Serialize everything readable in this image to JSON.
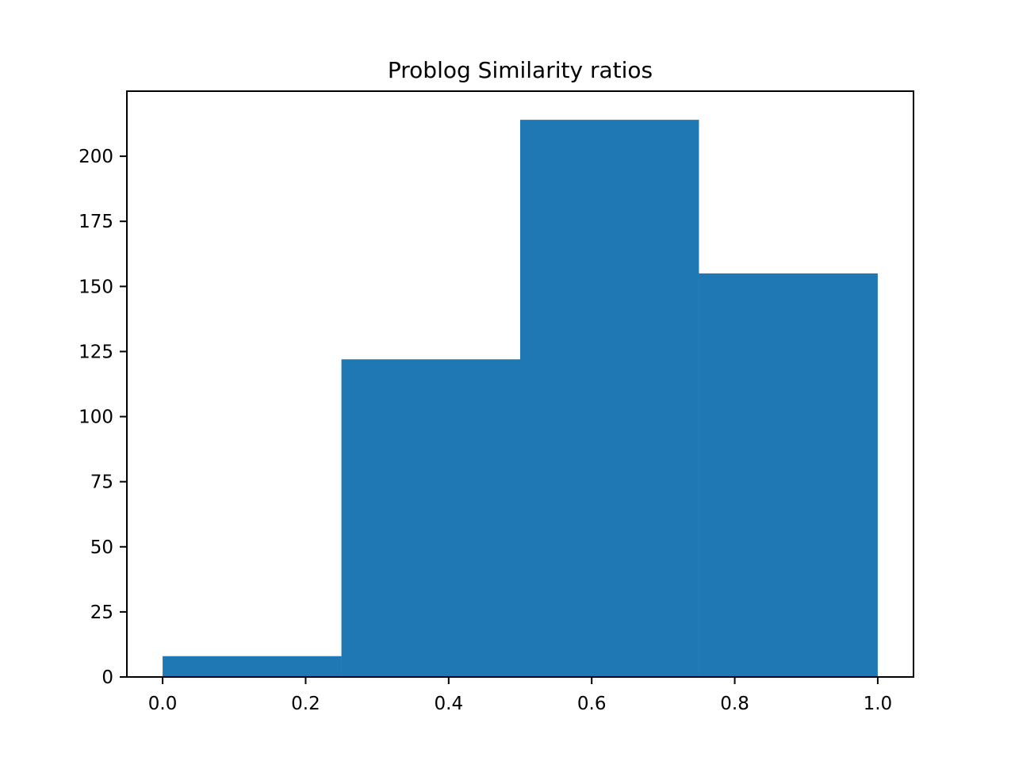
{
  "chart_data": {
    "type": "bar",
    "title": "Problog Similarity ratios",
    "xlabel": "",
    "ylabel": "",
    "bins": [
      {
        "start": 0.0,
        "end": 0.25,
        "count": 8
      },
      {
        "start": 0.25,
        "end": 0.5,
        "count": 122
      },
      {
        "start": 0.5,
        "end": 0.75,
        "count": 214
      },
      {
        "start": 0.75,
        "end": 1.0,
        "count": 155
      }
    ],
    "xlim": [
      -0.05,
      1.05
    ],
    "ylim": [
      0,
      225
    ],
    "xticks": [
      0.0,
      0.2,
      0.4,
      0.6,
      0.8,
      1.0
    ],
    "xtick_labels": [
      "0.0",
      "0.2",
      "0.4",
      "0.6",
      "0.8",
      "1.0"
    ],
    "yticks": [
      0,
      25,
      50,
      75,
      100,
      125,
      150,
      175,
      200
    ],
    "ytick_labels": [
      "0",
      "25",
      "50",
      "75",
      "100",
      "125",
      "150",
      "175",
      "200"
    ],
    "bar_color": "#1f77b4",
    "grid": false,
    "legend": "none"
  }
}
